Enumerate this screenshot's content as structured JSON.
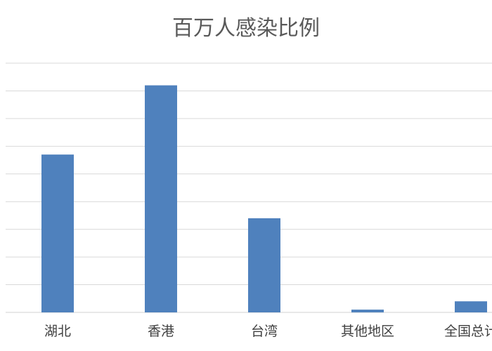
{
  "chart_data": {
    "type": "bar",
    "title": "百万人感染比例",
    "xlabel": "",
    "ylabel": "",
    "categories": [
      "湖北",
      "香港",
      "台湾",
      "其他地区",
      "全国总计"
    ],
    "values": [
      57,
      82,
      34,
      1,
      4
    ],
    "ylim": [
      0,
      90
    ],
    "ytick_step": 10,
    "grid": true,
    "legend": "none",
    "colors": {
      "bar": "#4f81bd",
      "grid": "#d9d9d9",
      "title": "#595959",
      "tick": "#404040"
    }
  }
}
